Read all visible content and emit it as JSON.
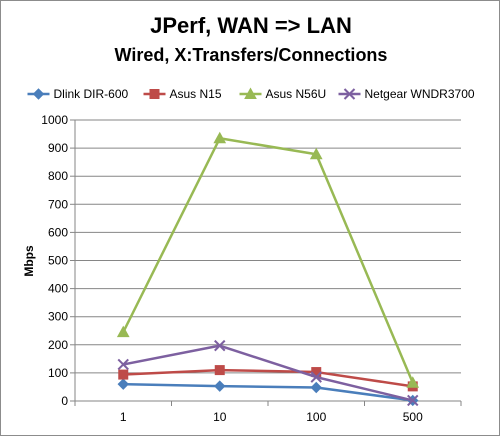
{
  "chart_data": {
    "type": "line",
    "title": "JPerf, WAN => LAN",
    "subtitle": "Wired, X:Transfers/Connections",
    "xlabel": "",
    "ylabel": "Mbps",
    "categories": [
      "1",
      "10",
      "100",
      "500"
    ],
    "ylim": [
      0,
      1000
    ],
    "ytick_step": 100,
    "grid": true,
    "legend_position": "top",
    "series": [
      {
        "name": "Dlink DIR-600",
        "values": [
          60,
          53,
          48,
          2
        ],
        "color": "#4a7ebb",
        "marker": "diamond"
      },
      {
        "name": "Asus N15",
        "values": [
          94,
          110,
          103,
          52
        ],
        "color": "#be4b48",
        "marker": "square"
      },
      {
        "name": "Asus N56U",
        "values": [
          245,
          935,
          878,
          65
        ],
        "color": "#98b954",
        "marker": "triangle"
      },
      {
        "name": "Netgear WNDR3700",
        "values": [
          130,
          197,
          85,
          2
        ],
        "color": "#7d60a0",
        "marker": "x"
      }
    ]
  }
}
